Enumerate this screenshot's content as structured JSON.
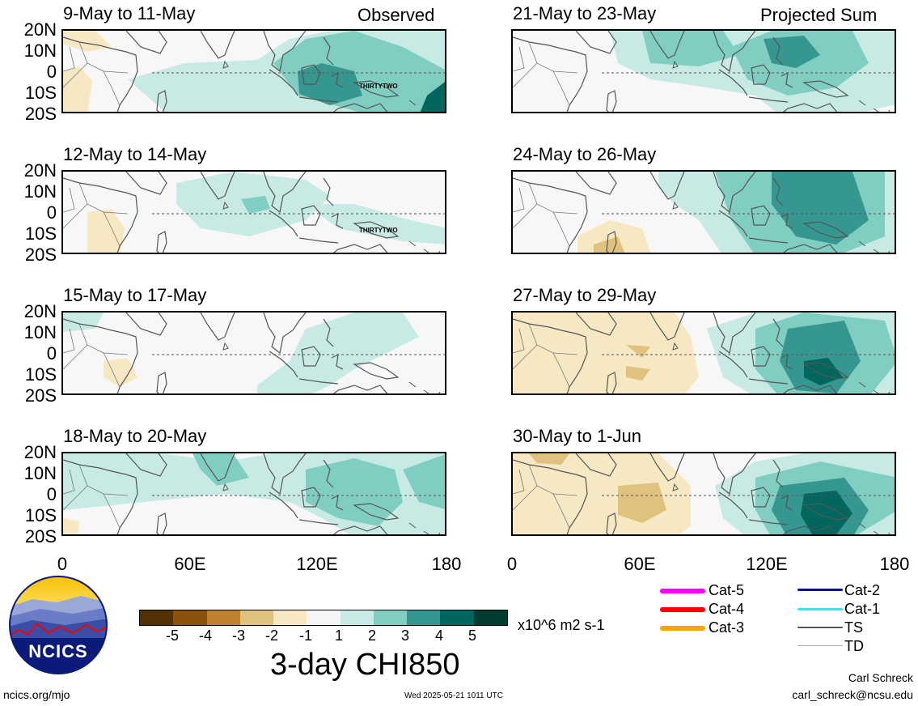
{
  "panels": [
    {
      "title": "9-May to 11-May",
      "tag": "Observed",
      "storm": "THIRTYTWO"
    },
    {
      "title": "12-May to 14-May",
      "tag": "",
      "storm": "THIRTYTWO"
    },
    {
      "title": "15-May to 17-May",
      "tag": "",
      "storm": ""
    },
    {
      "title": "18-May to 20-May",
      "tag": "",
      "storm": ""
    },
    {
      "title": "21-May to 23-May",
      "tag": "Projected Sum",
      "storm": ""
    },
    {
      "title": "24-May to 26-May",
      "tag": "",
      "storm": ""
    },
    {
      "title": "27-May to 29-May",
      "tag": "",
      "storm": ""
    },
    {
      "title": "30-May to 1-Jun",
      "tag": "",
      "storm": ""
    }
  ],
  "lat_labels": [
    "20N",
    "10N",
    "0",
    "10S",
    "20S"
  ],
  "lon_labels": [
    "0",
    "60E",
    "120E",
    "180"
  ],
  "colorbar": {
    "title": "3-day CHI850",
    "units": "x10^6 m2 s-1",
    "labels": [
      "-5",
      "-4",
      "-3",
      "-2",
      "-1",
      "1",
      "2",
      "3",
      "4",
      "5"
    ],
    "colors": [
      "#543005",
      "#8c510a",
      "#bf812d",
      "#dfc27d",
      "#f6e8c3",
      "#f5f5f5",
      "#c7eae5",
      "#80cdc1",
      "#35978f",
      "#01665e",
      "#003c30"
    ]
  },
  "legend": [
    {
      "label": "Cat-5",
      "color": "#ff00ff"
    },
    {
      "label": "Cat-4",
      "color": "#ff0000"
    },
    {
      "label": "Cat-3",
      "color": "#ffa500"
    },
    {
      "label": "Cat-2",
      "color": "#0000cc"
    },
    {
      "label": "Cat-1",
      "color": "#00ffff"
    },
    {
      "label": "TS",
      "color": "#555555"
    },
    {
      "label": "TD",
      "color": "#aaaaaa"
    }
  ],
  "logo": {
    "text": "NCICS"
  },
  "footer": {
    "left": "ncics.org/mjo",
    "center": "Wed 2025-05-21 1011 UTC",
    "right_name": "Carl Schreck",
    "right_email": "carl_schreck@ncsu.edu"
  }
}
